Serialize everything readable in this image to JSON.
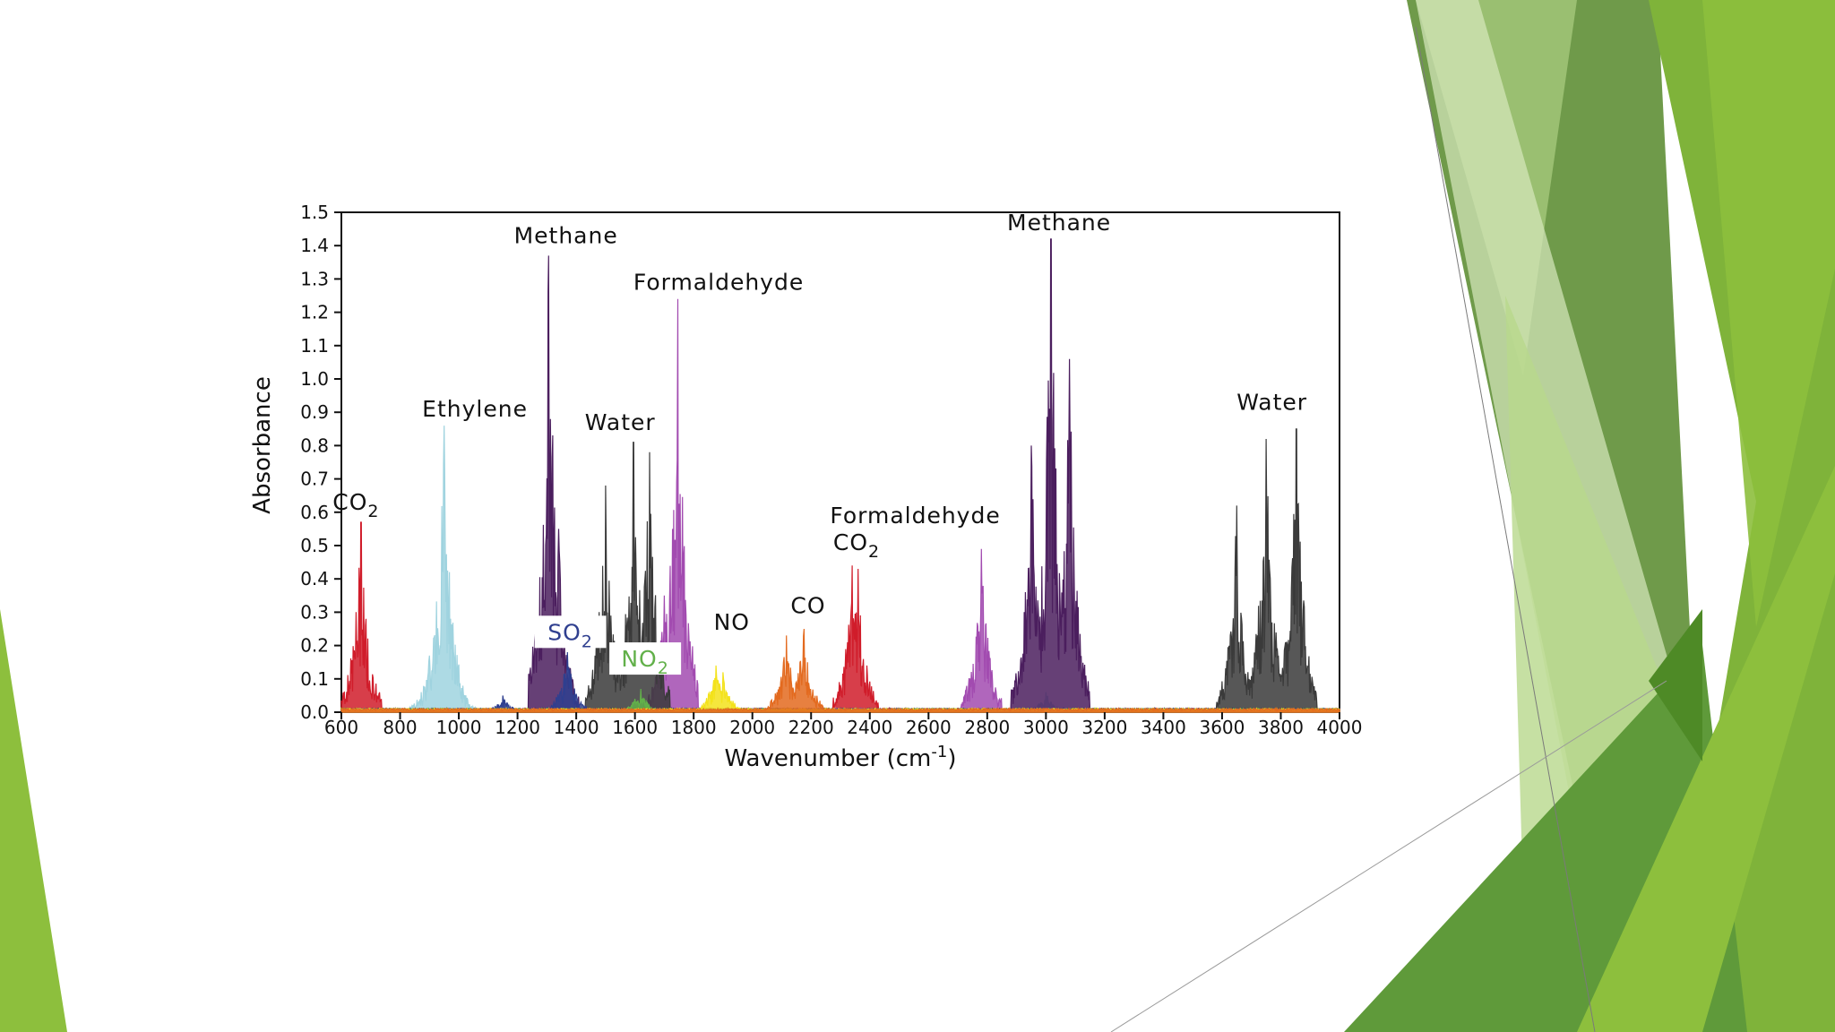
{
  "slide": {
    "background": "#ffffff",
    "decoration_colors": [
      "#6f9a4a",
      "#7fb33a",
      "#8dbf3d",
      "#5f9a3a",
      "#b8d88c",
      "#d7e8bd",
      "#4e8a26"
    ]
  },
  "chart_data": {
    "type": "line",
    "title": "",
    "xlabel": "Wavenumber (cm",
    "xlabel_sup": "-1",
    "xlabel_close": ")",
    "ylabel": "Absorbance",
    "xlim": [
      600,
      4000
    ],
    "ylim": [
      0.0,
      1.5
    ],
    "xticks": [
      600,
      800,
      1000,
      1200,
      1400,
      1600,
      1800,
      2000,
      2200,
      2400,
      2600,
      2800,
      3000,
      3200,
      3400,
      3600,
      3800,
      4000
    ],
    "yticks": [
      "0.0",
      "0.1",
      "0.2",
      "0.3",
      "0.4",
      "0.5",
      "0.6",
      "0.7",
      "0.8",
      "0.9",
      "1.0",
      "1.1",
      "1.2",
      "1.3",
      "1.4",
      "1.5"
    ],
    "grid": false,
    "series": [
      {
        "color": "#d01c2a",
        "peaks": [
          [
            667,
            0.57
          ],
          [
            2340,
            0.44
          ],
          [
            2360,
            0.43
          ],
          [
            700,
            0.05
          ]
        ]
      },
      {
        "color": "#9fd3df",
        "peaks": [
          [
            950,
            0.86
          ],
          [
            900,
            0.17
          ],
          [
            1000,
            0.12
          ],
          [
            3000,
            0.06
          ]
        ]
      },
      {
        "color": "#4b1e5e",
        "peaks": [
          [
            1306,
            1.37
          ],
          [
            1340,
            0.55
          ],
          [
            3017,
            1.42
          ],
          [
            3080,
            1.06
          ],
          [
            2950,
            0.8
          ]
        ]
      },
      {
        "color": "#a24bb0",
        "peaks": [
          [
            1746,
            1.24
          ],
          [
            2780,
            0.49
          ],
          [
            1700,
            0.35
          ]
        ]
      },
      {
        "color": "#3a3a3a",
        "peaks": [
          [
            1595,
            0.81
          ],
          [
            1650,
            0.78
          ],
          [
            1500,
            0.68
          ],
          [
            3750,
            0.82
          ],
          [
            3853,
            0.85
          ],
          [
            3650,
            0.62
          ]
        ]
      },
      {
        "color": "#2f3f8f",
        "peaks": [
          [
            1370,
            0.18
          ],
          [
            1150,
            0.05
          ]
        ]
      },
      {
        "color": "#62b04a",
        "peaks": [
          [
            1620,
            0.07
          ],
          [
            1600,
            0.04
          ]
        ]
      },
      {
        "color": "#f3e21b",
        "peaks": [
          [
            1876,
            0.14
          ],
          [
            1900,
            0.12
          ]
        ]
      },
      {
        "color": "#e36a1f",
        "peaks": [
          [
            2116,
            0.23
          ],
          [
            2176,
            0.25
          ]
        ]
      }
    ],
    "annotations": [
      {
        "main": "CO",
        "sub": "2",
        "x": 650,
        "y": 0.58
      },
      {
        "main": "Ethylene",
        "x": 1055,
        "y": 0.86
      },
      {
        "main": "Methane",
        "x": 1365,
        "y": 1.38
      },
      {
        "main": "Formaldehyde",
        "x": 1885,
        "y": 1.24
      },
      {
        "main": "Water",
        "x": 1550,
        "y": 0.82
      },
      {
        "main": "SO",
        "sub": "2",
        "x": 1380,
        "y": 0.19,
        "color": "#2f3f8f",
        "box": true
      },
      {
        "main": "NO",
        "sub": "2",
        "x": 1635,
        "y": 0.11,
        "color": "#62b04a",
        "box": true
      },
      {
        "main": "NO",
        "x": 1930,
        "y": 0.22
      },
      {
        "main": "CO",
        "x": 2190,
        "y": 0.27
      },
      {
        "main": "Formaldehyde",
        "x": 2555,
        "y": 0.54
      },
      {
        "main": "CO",
        "sub": "2",
        "x": 2355,
        "y": 0.46
      },
      {
        "main": "Methane",
        "x": 3045,
        "y": 1.42
      },
      {
        "main": "Water",
        "x": 3770,
        "y": 0.88
      }
    ]
  }
}
